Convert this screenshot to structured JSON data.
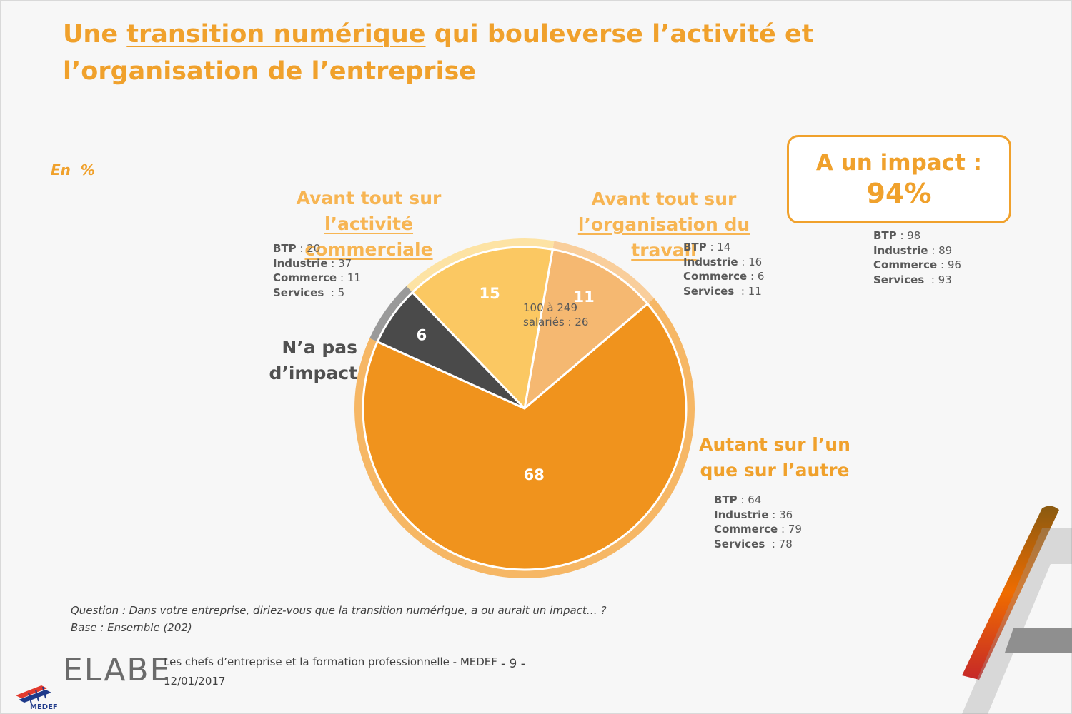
{
  "page": {
    "title_parts": [
      "Une ",
      "transition numérique",
      " qui bouleverse l’activité et l’organisation de l’entreprise"
    ],
    "unit_label": "En  %"
  },
  "impact_box": {
    "label": "A un impact :",
    "value": "94%"
  },
  "impact_breakdown": [
    {
      "key": "BTP",
      "sep": " : ",
      "value": "98"
    },
    {
      "key": "Industrie",
      "sep": " : ",
      "value": "89"
    },
    {
      "key": "Commerce",
      "sep": " : ",
      "value": "96"
    },
    {
      "key": "Services",
      "sep": "  : ",
      "value": "93"
    }
  ],
  "segments": {
    "commercial": {
      "label_line1": "Avant tout sur",
      "label_line2": "l’activité commerciale",
      "breakdown": [
        {
          "key": "BTP",
          "sep": " : ",
          "value": "20"
        },
        {
          "key": "Industrie",
          "sep": " : ",
          "value": "37"
        },
        {
          "key": "Commerce",
          "sep": " : ",
          "value": "11"
        },
        {
          "key": "Services",
          "sep": "  : ",
          "value": "5"
        }
      ]
    },
    "organisation": {
      "label_line1": "Avant tout sur",
      "label_line2": "l’organisation du travail",
      "breakdown": [
        {
          "key": "BTP",
          "sep": " : ",
          "value": "14"
        },
        {
          "key": "Industrie",
          "sep": " : ",
          "value": "16"
        },
        {
          "key": "Commerce",
          "sep": " : ",
          "value": "6"
        },
        {
          "key": "Services",
          "sep": "  : ",
          "value": "11"
        }
      ],
      "extra_note_line1": "100 à 249",
      "extra_note_line2": "salariés : 26"
    },
    "both": {
      "label_line1": "Autant sur l’un",
      "label_line2": "que sur l’autre",
      "breakdown": [
        {
          "key": "BTP",
          "sep": " : ",
          "value": "64"
        },
        {
          "key": "Industrie",
          "sep": " : ",
          "value": "36"
        },
        {
          "key": "Commerce",
          "sep": " : ",
          "value": "79"
        },
        {
          "key": "Services",
          "sep": "  : ",
          "value": "78"
        }
      ]
    },
    "none": {
      "label": "N’a pas d’impact"
    }
  },
  "chart_data": {
    "type": "pie",
    "title": "Une transition numérique qui bouleverse l’activité et l’organisation de l’entreprise",
    "unit": "%",
    "slices": [
      {
        "label": "Avant tout sur l’organisation du travail",
        "value": 11,
        "color": "#f5b871"
      },
      {
        "label": "Autant sur l’un que sur l’autre",
        "value": 68,
        "color": "#f0931d"
      },
      {
        "label": "N’a pas d’impact",
        "value": 6,
        "color": "#4a4a4a"
      },
      {
        "label": "Avant tout sur l’activité commerciale",
        "value": 15,
        "color": "#fbc862"
      }
    ],
    "ring_colors": [
      "#f9ce9b",
      "#f6b765",
      "#9a9a9a",
      "#fde3a4"
    ]
  },
  "footer": {
    "question": "Question : Dans votre entreprise, diriez-vous que la transition numérique, a ou aurait un impact… ?",
    "base": "Base : Ensemble (202)",
    "logo": "ELABE",
    "study": "Les chefs d’entreprise et la formation professionnelle - MEDEF",
    "date": "12/01/2017",
    "page": "- 9 -",
    "partner_logo": "MEDEF"
  }
}
